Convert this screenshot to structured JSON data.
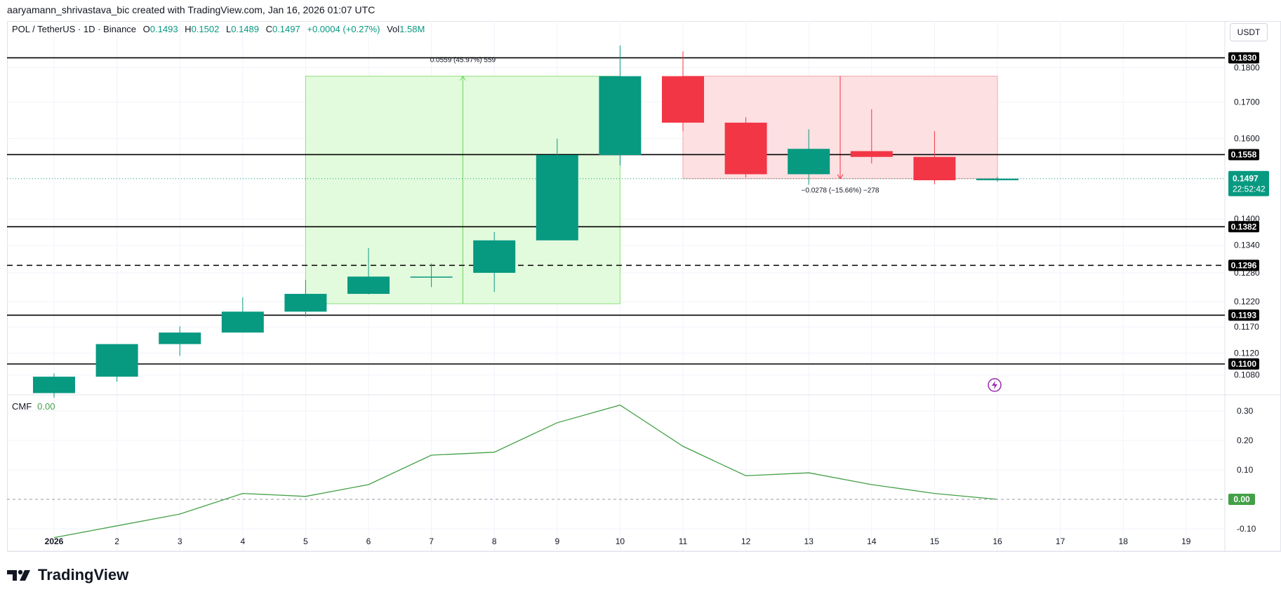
{
  "header": {
    "credit": "aaryamann_shrivastava_bic created with TradingView.com, Jan 16, 2026 01:07 UTC"
  },
  "legend": {
    "symbol": "POL / TetherUS · 1D · Binance",
    "o_label": "O",
    "o": "0.1493",
    "h_label": "H",
    "h": "0.1502",
    "l_label": "L",
    "l": "0.1489",
    "c_label": "C",
    "c": "0.1497",
    "change": "+0.0004 (+0.27%)",
    "vol_label": "Vol",
    "vol": "1.58M"
  },
  "price_axis": {
    "unit_button": "USDT",
    "ticks": [
      "0.1800",
      "0.1700",
      "0.1600",
      "0.1400",
      "0.1340",
      "0.1280",
      "0.1220",
      "0.1170",
      "0.1120",
      "0.1080"
    ]
  },
  "cmf": {
    "label": "CMF",
    "value": "0.00",
    "ticks": [
      "0.30",
      "0.20",
      "0.10",
      "-0.10"
    ],
    "last_tag": "0.00"
  },
  "time_axis": {
    "labels": [
      "2026",
      "2",
      "3",
      "4",
      "5",
      "6",
      "7",
      "8",
      "9",
      "10",
      "11",
      "12",
      "13",
      "14",
      "15",
      "16",
      "17",
      "18",
      "19"
    ]
  },
  "levels": [
    {
      "label": "0.1830",
      "dashed": false
    },
    {
      "label": "0.1558",
      "dashed": false
    },
    {
      "label": "0.1382",
      "dashed": false
    },
    {
      "label": "0.1296",
      "dashed": true
    },
    {
      "label": "0.1193",
      "dashed": false
    },
    {
      "label": "0.1100",
      "dashed": false
    }
  ],
  "last_price": {
    "price": "0.1497",
    "countdown": "22:52:42"
  },
  "measures": {
    "up": "0.0559 (45.97%) 559",
    "down": "−0.0278 (−15.66%) −278"
  },
  "colors": {
    "up": "#089981",
    "down": "#f23645",
    "cmf_line": "#43a047",
    "up_zone": "#e3fbdd",
    "down_zone": "#fde0e2",
    "level": "#000000",
    "text": "#131722"
  },
  "logo": "TradingView",
  "chart_data": {
    "type": "candlestick",
    "x": [
      "Jan 1",
      "Jan 2",
      "Jan 3",
      "Jan 4",
      "Jan 5",
      "Jan 6",
      "Jan 7",
      "Jan 8",
      "Jan 9",
      "Jan 10",
      "Jan 11",
      "Jan 12",
      "Jan 13",
      "Jan 14",
      "Jan 15",
      "Jan 16"
    ],
    "open": [
      0.1048,
      0.1077,
      0.1137,
      0.1159,
      0.12,
      0.1236,
      0.1272,
      0.128,
      0.1351,
      0.1557,
      0.1775,
      0.1643,
      0.1508,
      0.1567,
      0.1552,
      0.1493
    ],
    "high": [
      0.1083,
      0.1137,
      0.1171,
      0.1229,
      0.1265,
      0.1334,
      0.13,
      0.137,
      0.16,
      0.1868,
      0.185,
      0.1658,
      0.1625,
      0.168,
      0.162,
      0.1502
    ],
    "low": [
      0.104,
      0.1068,
      0.1115,
      0.1159,
      0.119,
      0.1235,
      0.125,
      0.124,
      0.1351,
      0.153,
      0.162,
      0.15,
      0.1482,
      0.1535,
      0.1483,
      0.1489
    ],
    "close": [
      0.1077,
      0.1137,
      0.1159,
      0.12,
      0.1236,
      0.1272,
      0.1272,
      0.1351,
      0.1557,
      0.1775,
      0.1643,
      0.1508,
      0.1573,
      0.1552,
      0.1493,
      0.1497
    ],
    "cmf": [
      -0.13,
      -0.09,
      -0.05,
      0.02,
      0.01,
      0.05,
      0.15,
      0.16,
      0.26,
      0.32,
      0.18,
      0.08,
      0.09,
      0.05,
      0.02,
      0.0
    ],
    "horizontal_levels": [
      0.183,
      0.1558,
      0.1382,
      0.1296,
      0.1193,
      0.11
    ],
    "measure_up": {
      "from_date": "Jan 5",
      "to_date": "Jan 10",
      "low": 0.1216,
      "high": 0.1775
    },
    "measure_down": {
      "from_date": "Jan 11",
      "to_date": "Jan 16",
      "high": 0.1775,
      "low": 0.1497
    },
    "price_scale": "log",
    "ylim": [
      0.1045,
      0.1905
    ],
    "cmf_ylim": [
      -0.1,
      0.3
    ]
  }
}
